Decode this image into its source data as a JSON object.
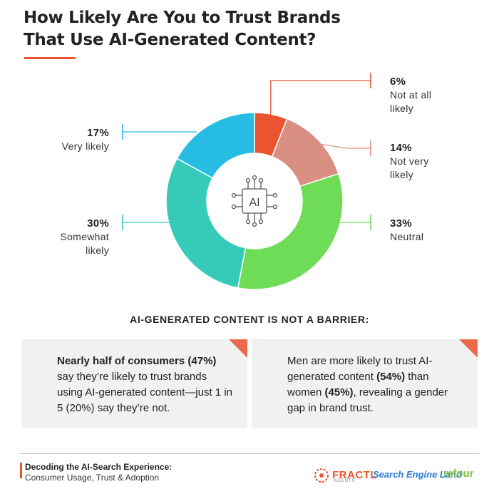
{
  "title_line1": "How Likely Are You to Trust Brands",
  "title_line2": "That Use AI-Generated Content?",
  "center_icon": "ai-chip-icon",
  "center_text": "AI",
  "chart_data": {
    "type": "pie",
    "donut": true,
    "slices": [
      {
        "label_line1": "Not at all",
        "label_line2": "likely",
        "value": 6,
        "pct": "6%",
        "color": "#ea5530"
      },
      {
        "label_line1": "Not very",
        "label_line2": "likely",
        "value": 14,
        "pct": "14%",
        "color": "#d98f82"
      },
      {
        "label_line1": "Neutral",
        "label_line2": "",
        "value": 33,
        "pct": "33%",
        "color": "#6fdc58"
      },
      {
        "label_line1": "Somewhat",
        "label_line2": "likely",
        "value": 30,
        "pct": "30%",
        "color": "#36cbb9"
      },
      {
        "label_line1": "Very likely",
        "label_line2": "",
        "value": 17,
        "pct": "17%",
        "color": "#26bce4"
      }
    ]
  },
  "subheading": "AI-GENERATED CONTENT IS NOT A BARRIER:",
  "card1": {
    "bold": "Nearly half of consumers (47%)",
    "text": " say they’re likely to trust brands using AI-generated content—just 1 in 5 (20%) say they’re not."
  },
  "card2": {
    "text1": "Men are more likely to trust AI-generated content ",
    "bold1": "(54%)",
    "text2": " than women ",
    "bold2": "(45%)",
    "text3": ", revealing a gender gap in brand trust."
  },
  "footer": {
    "title": "Decoding the AI-Search Experience:",
    "subtitle": "Consumer Usage, Trust & Adoption"
  },
  "logos": {
    "fractl": "FRACTL",
    "fractl_sub": "AGENTS",
    "search_engine_land": "Search Engine Land",
    "mfour": "mfour"
  },
  "accent_color": "#e8542f"
}
